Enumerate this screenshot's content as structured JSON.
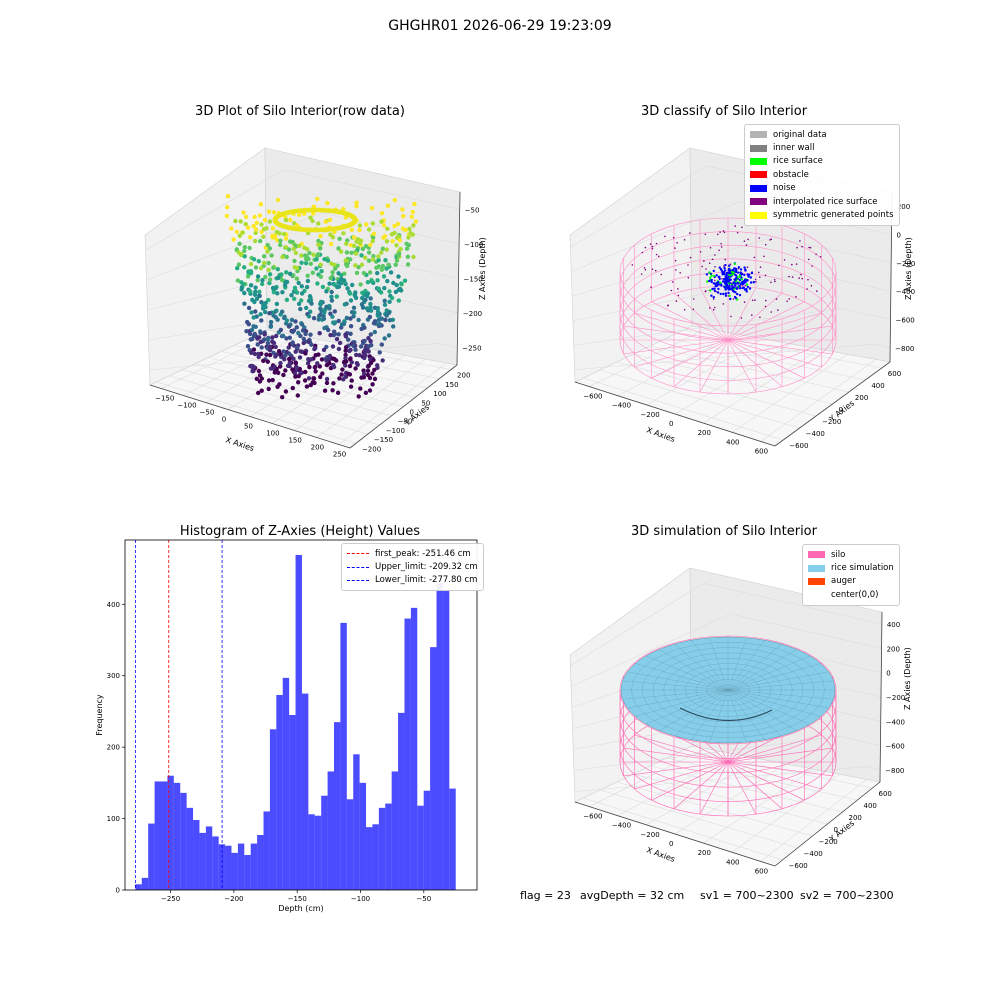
{
  "figure": {
    "suptitle": "GHGHR01 2026-06-29 19:23:09"
  },
  "panels": {
    "raw": {
      "title": "3D Plot of Silo Interior(row data)",
      "xlabel": "X Axies",
      "ylabel": "Y Axies",
      "zlabel": "Z Axies (Depth)",
      "x_ticks": [
        "−150",
        "−100",
        "−50",
        "0",
        "50",
        "100",
        "150",
        "200",
        "250"
      ],
      "y_ticks": [
        "−200",
        "−150",
        "−100",
        "−50",
        "0",
        "50",
        "100",
        "150",
        "200"
      ],
      "z_ticks": [
        "−50",
        "−100",
        "−150",
        "−200",
        "−250"
      ]
    },
    "classify": {
      "title": "3D classify of Silo Interior",
      "xlabel": "X Axies",
      "ylabel": "Y Axies",
      "zlabel": "Z Axies (Depth)",
      "x_ticks": [
        "−600",
        "−400",
        "−200",
        "0",
        "200",
        "400",
        "600"
      ],
      "y_ticks": [
        "−600",
        "−400",
        "−200",
        "0",
        "200",
        "400",
        "600"
      ],
      "z_ticks": [
        "200",
        "0",
        "−200",
        "−400",
        "−600",
        "−800"
      ],
      "z_top_tick": "400",
      "legend": [
        {
          "label": "original data",
          "color": "#b3b3b3"
        },
        {
          "label": "inner wall",
          "color": "#808080"
        },
        {
          "label": "rice surface",
          "color": "#00ff00"
        },
        {
          "label": "obstacle",
          "color": "#ff0000"
        },
        {
          "label": "noise",
          "color": "#0000ff"
        },
        {
          "label": "interpolated rice surface",
          "color": "#800080"
        },
        {
          "label": "symmetric generated points",
          "color": "#ffff00"
        }
      ]
    },
    "histogram": {
      "title": "Histogram of Z-Axies (Height) Values",
      "xlabel": "Depth (cm)",
      "ylabel": "Frequency",
      "legend": [
        {
          "label": "first_peak: -251.46 cm",
          "color": "#ff0000"
        },
        {
          "label": "Upper_limit: -209.32 cm",
          "color": "#0000ff"
        },
        {
          "label": "Lower_limit: -277.80 cm",
          "color": "#0000ff"
        }
      ]
    },
    "simulation": {
      "title": "3D simulation of Silo Interior",
      "xlabel": "X Axies",
      "ylabel": "Y Axies",
      "zlabel": "Z Axies (Depth)",
      "x_ticks": [
        "−600",
        "−400",
        "−200",
        "0",
        "200",
        "400",
        "600"
      ],
      "y_ticks": [
        "−600",
        "−400",
        "−200",
        "0",
        "200",
        "400",
        "600"
      ],
      "z_ticks": [
        "400",
        "200",
        "0",
        "−200",
        "−400",
        "−600",
        "−800"
      ],
      "legend": [
        {
          "label": "silo",
          "color": "#ff69b4"
        },
        {
          "label": "rice simulation",
          "color": "#87ceeb"
        },
        {
          "label": "auger",
          "color": "#ff4500"
        },
        {
          "label": "center(0,0)",
          "color": ""
        }
      ]
    }
  },
  "footer": {
    "flag": "flag = 23",
    "avg_depth": "avgDepth = 32 cm",
    "sv1": "sv1 = 700~2300",
    "sv2": "sv2 = 700~2300"
  },
  "chart_data": [
    {
      "type": "scatter",
      "title": "3D Plot of Silo Interior(row data)",
      "xlabel": "X Axies",
      "ylabel": "Y Axies",
      "zlabel": "Z Axies (Depth)",
      "xlim": [
        -175,
        250
      ],
      "ylim": [
        -200,
        200
      ],
      "zlim": [
        -275,
        -25
      ],
      "colormap": "viridis"
    },
    {
      "type": "scatter",
      "title": "3D classify of Silo Interior",
      "xlabel": "X Axies",
      "ylabel": "Y Axies",
      "zlabel": "Z Axies (Depth)",
      "xlim": [
        -700,
        700
      ],
      "ylim": [
        -700,
        700
      ],
      "zlim": [
        -900,
        400
      ],
      "legend_position": "upper right",
      "series": [
        {
          "name": "original data"
        },
        {
          "name": "inner wall"
        },
        {
          "name": "rice surface"
        },
        {
          "name": "obstacle"
        },
        {
          "name": "noise"
        },
        {
          "name": "interpolated rice surface"
        },
        {
          "name": "symmetric generated points"
        }
      ]
    },
    {
      "type": "bar",
      "title": "Histogram of Z-Axies (Height) Values",
      "xlabel": "Depth (cm)",
      "ylabel": "Frequency",
      "xlim": [
        -286,
        -8
      ],
      "ylim": [
        0,
        490
      ],
      "x_ticks": [
        -250,
        -200,
        -150,
        -100,
        -50
      ],
      "y_ticks": [
        0,
        100,
        200,
        300,
        400
      ],
      "bin_start": -277.8,
      "bin_width": 5.06,
      "values": [
        8,
        17,
        93,
        152,
        152,
        160,
        150,
        136,
        115,
        98,
        80,
        89,
        75,
        64,
        62,
        52,
        65,
        49,
        65,
        77,
        110,
        225,
        273,
        297,
        245,
        469,
        275,
        106,
        104,
        132,
        166,
        235,
        374,
        127,
        190,
        150,
        88,
        92,
        115,
        121,
        166,
        248,
        380,
        395,
        118,
        139,
        340,
        430,
        420,
        142
      ],
      "vlines": [
        {
          "label": "first_peak: -251.46 cm",
          "x": -251.46,
          "color": "#ff0000"
        },
        {
          "label": "Upper_limit: -209.32 cm",
          "x": -209.32,
          "color": "#0000ff"
        },
        {
          "label": "Lower_limit: -277.80 cm",
          "x": -277.8,
          "color": "#0000ff"
        }
      ],
      "bar_color": "#0000ff",
      "legend_position": "upper right"
    },
    {
      "type": "area",
      "title": "3D simulation of Silo Interior",
      "xlabel": "X Axies",
      "ylabel": "Y Axies",
      "zlabel": "Z Axies (Depth)",
      "xlim": [
        -700,
        700
      ],
      "ylim": [
        -700,
        700
      ],
      "zlim": [
        -900,
        500
      ],
      "legend_position": "upper right",
      "series": [
        {
          "name": "silo"
        },
        {
          "name": "rice simulation"
        },
        {
          "name": "auger"
        },
        {
          "name": "center(0,0)"
        }
      ]
    }
  ]
}
